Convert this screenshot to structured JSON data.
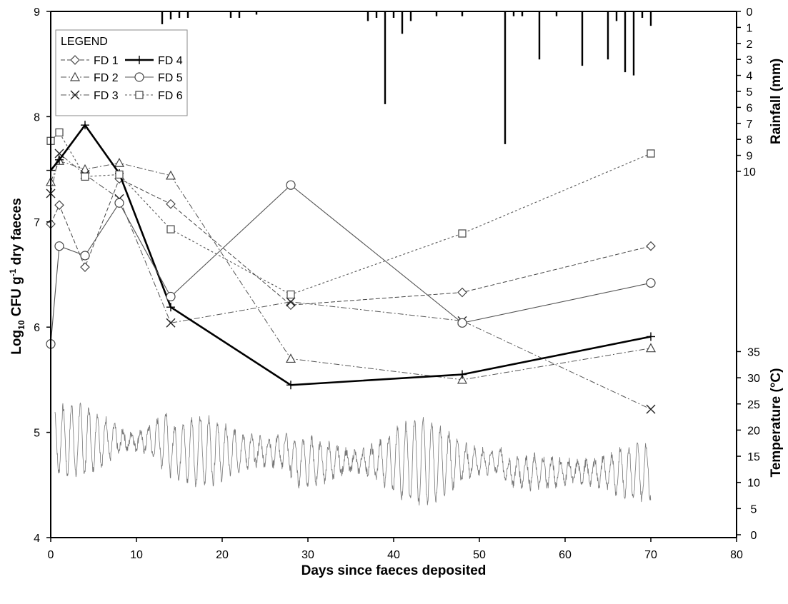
{
  "chart_data": {
    "type": "line",
    "x_axis": {
      "label": "Days since faeces deposited",
      "range": [
        0,
        80
      ],
      "ticks": [
        0,
        10,
        20,
        30,
        40,
        50,
        60,
        70,
        80
      ]
    },
    "y_axis_left": {
      "label_main": "Log",
      "label_sub": "10",
      "label_mid": " CFU g",
      "label_sup": "-1",
      "label_end": " dry faeces",
      "range": [
        4,
        9
      ],
      "ticks": [
        4,
        5,
        6,
        7,
        8,
        9
      ]
    },
    "y_axis_right_rainfall": {
      "label": "Rainfall (mm)",
      "range": [
        0,
        10
      ],
      "ticks": [
        0,
        1,
        2,
        3,
        4,
        5,
        6,
        7,
        8,
        9,
        10
      ],
      "direction": "top-down"
    },
    "y_axis_right_temperature": {
      "label": "Temperature (°C)",
      "range": [
        0,
        35
      ],
      "ticks": [
        0,
        5,
        10,
        15,
        20,
        25,
        30,
        35
      ]
    },
    "legend": {
      "title": "LEGEND",
      "placement": "top-left"
    },
    "series": [
      {
        "name": "FD 1",
        "marker": "diamond",
        "style": "dashed",
        "x": [
          0,
          1,
          4,
          8,
          14,
          28,
          48,
          70
        ],
        "y": [
          6.98,
          7.16,
          6.57,
          7.41,
          7.17,
          6.21,
          6.33,
          6.77
        ]
      },
      {
        "name": "FD 2",
        "marker": "triangle",
        "style": "dashdot",
        "x": [
          0,
          1,
          4,
          8,
          14,
          28,
          48,
          70
        ],
        "y": [
          7.38,
          7.58,
          7.5,
          7.56,
          7.44,
          5.7,
          5.5,
          5.8
        ]
      },
      {
        "name": "FD 3",
        "marker": "x",
        "style": "dashdot",
        "x": [
          0,
          1,
          4,
          8,
          14,
          28,
          48,
          70
        ],
        "y": [
          7.27,
          7.65,
          7.45,
          7.22,
          6.04,
          6.24,
          6.06,
          5.22
        ]
      },
      {
        "name": "FD 4",
        "marker": "plus",
        "style": "solid-bold",
        "x": [
          0,
          1,
          4,
          8,
          14,
          28,
          48,
          70
        ],
        "y": [
          7.49,
          7.59,
          7.92,
          7.46,
          6.19,
          5.45,
          5.55,
          5.91
        ]
      },
      {
        "name": "FD 5",
        "marker": "circle",
        "style": "solid",
        "x": [
          0,
          1,
          4,
          8,
          14,
          28,
          48,
          70
        ],
        "y": [
          5.84,
          6.77,
          6.68,
          7.18,
          6.29,
          7.35,
          6.04,
          6.42
        ]
      },
      {
        "name": "FD 6",
        "marker": "square",
        "style": "dotted",
        "x": [
          0,
          1,
          4,
          8,
          14,
          28,
          48,
          70
        ],
        "y": [
          7.77,
          7.85,
          7.43,
          7.45,
          6.93,
          6.31,
          6.89,
          7.65
        ]
      }
    ],
    "rainfall": {
      "days": [
        13,
        14,
        15,
        16,
        21,
        22,
        24,
        37,
        38,
        39,
        40,
        41,
        42,
        45,
        48,
        53,
        54,
        55,
        57,
        59,
        62,
        65,
        66,
        67,
        68,
        69,
        70
      ],
      "mm": [
        0.8,
        0.5,
        0.4,
        0.4,
        0.4,
        0.4,
        0.2,
        0.6,
        0.4,
        5.8,
        0.4,
        1.4,
        0.6,
        0.3,
        0.3,
        8.3,
        0.3,
        0.3,
        3.0,
        0.3,
        3.4,
        3.0,
        0.6,
        3.8,
        4.0,
        0.4,
        0.9
      ]
    },
    "temperature": {
      "note": "hourly temperature trace (°C)",
      "mean_levels": [
        {
          "from_day": 0.5,
          "to_day": 14,
          "mean": 18,
          "amp": 8
        },
        {
          "from_day": 14,
          "to_day": 28,
          "mean": 16,
          "amp": 5
        },
        {
          "from_day": 28,
          "to_day": 53,
          "mean": 14,
          "amp": 6
        },
        {
          "from_day": 53,
          "to_day": 70,
          "mean": 12,
          "amp": 4
        }
      ]
    },
    "grid": false
  }
}
